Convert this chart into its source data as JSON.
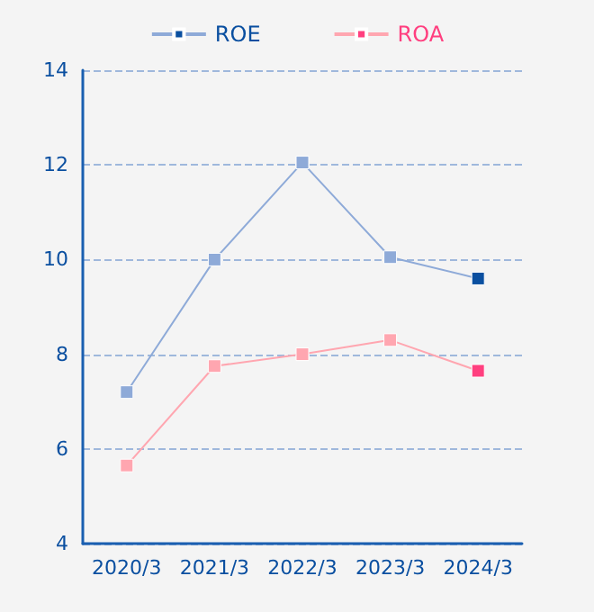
{
  "chart_data": {
    "type": "line",
    "categories": [
      "2020/3",
      "2021/3",
      "2022/3",
      "2023/3",
      "2024/3"
    ],
    "series": [
      {
        "name": "ROE",
        "color": "#8eaad8",
        "colors": [
          "#8eaad8",
          "#8eaad8",
          "#8eaad8",
          "#8eaad8",
          "#0a4fa0"
        ],
        "values": [
          7.2,
          10.0,
          12.05,
          10.05,
          9.6
        ]
      },
      {
        "name": "ROA",
        "color": "#ffa6b0",
        "colors": [
          "#ffa6b0",
          "#ffa6b0",
          "#ffa6b0",
          "#ffa6b0",
          "#ff3f7f"
        ],
        "values": [
          5.65,
          7.75,
          8.0,
          8.3,
          7.65
        ]
      }
    ],
    "ylim": [
      4,
      14
    ],
    "yticks": [
      4,
      6,
      8,
      10,
      12,
      14
    ],
    "grid": "y",
    "legend": "top",
    "marker": "square",
    "line_style": "solid"
  }
}
